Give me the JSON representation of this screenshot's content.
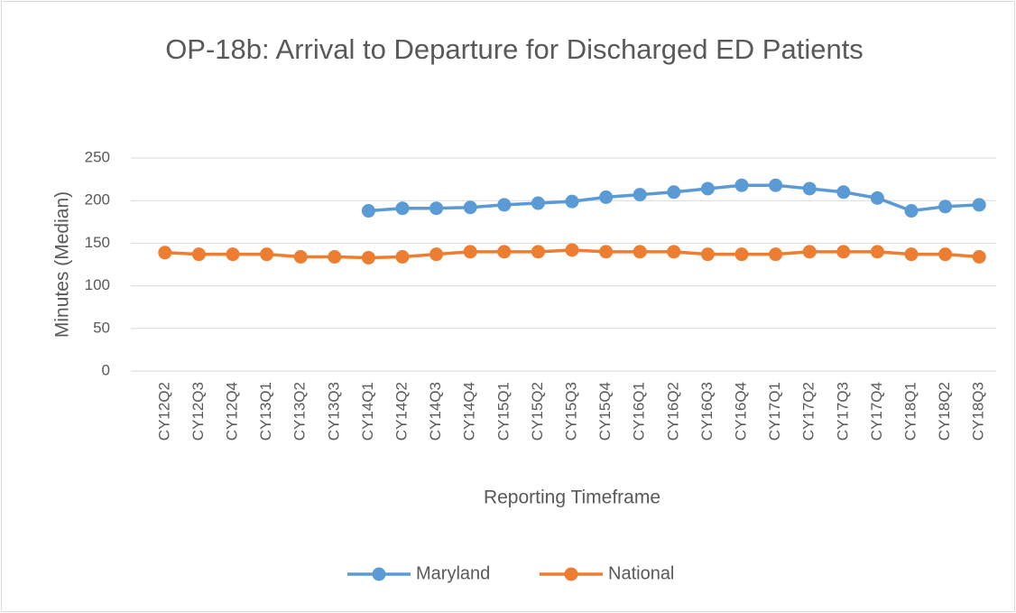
{
  "chart_data": {
    "type": "line",
    "title": "OP-18b: Arrival to Departure for Discharged ED Patients",
    "x_label": "Reporting Timeframe",
    "y_label": "Minutes (Median)",
    "categories": [
      "CY12Q2",
      "CY12Q3",
      "CY12Q4",
      "CY13Q1",
      "CY13Q2",
      "CY13Q3",
      "CY14Q1",
      "CY14Q2",
      "CY14Q3",
      "CY14Q4",
      "CY15Q1",
      "CY15Q2",
      "CY15Q3",
      "CY15Q4",
      "CY16Q1",
      "CY16Q2",
      "CY16Q3",
      "CY16Q4",
      "CY17Q1",
      "CY17Q2",
      "CY17Q3",
      "CY17Q4",
      "CY18Q1",
      "CY18Q2",
      "CY18Q3"
    ],
    "series": [
      {
        "name": "Maryland",
        "color": "#5b9bd5",
        "values": [
          null,
          null,
          null,
          null,
          null,
          null,
          188,
          191,
          191,
          192,
          195,
          197,
          199,
          204,
          207,
          210,
          214,
          218,
          218,
          214,
          210,
          203,
          188,
          193,
          195
        ]
      },
      {
        "name": "National",
        "color": "#ed7d31",
        "values": [
          139,
          137,
          137,
          137,
          134,
          134,
          133,
          134,
          137,
          140,
          140,
          140,
          142,
          140,
          140,
          140,
          137,
          137,
          137,
          140,
          140,
          140,
          137,
          137,
          134
        ]
      }
    ],
    "ylim": [
      0,
      250
    ],
    "yticks": [
      0,
      50,
      100,
      150,
      200,
      250
    ],
    "grid": true,
    "legend": "bottom"
  }
}
